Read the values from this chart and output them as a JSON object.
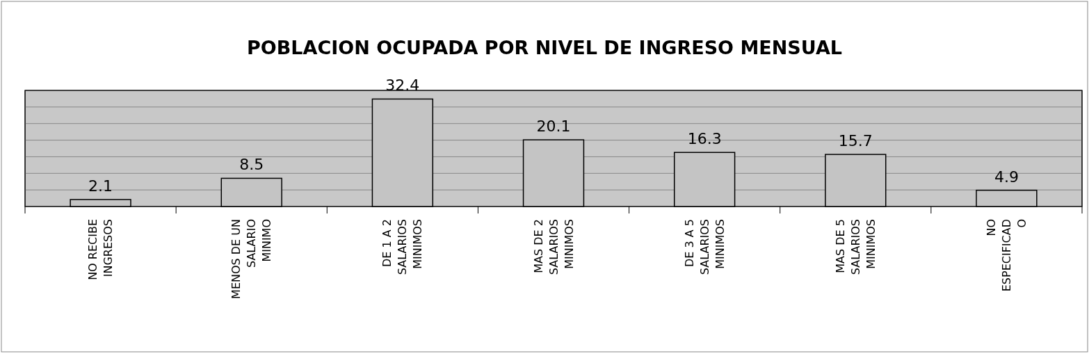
{
  "chart_data": {
    "type": "bar",
    "title": "POBLACION OCUPADA POR NIVEL DE INGRESO MENSUAL",
    "categories": [
      "NO RECIBE\nINGRESOS",
      "MENOS DE UN\nSALARIO\nMINIMO",
      "DE 1 A 2\nSALARIOS\nMINIMOS",
      "MAS DE 2\nSALARIOS\nMINIMOS",
      "DE 3 A 5\nSALARIOS\nMINIMOS",
      "MAS DE 5\nSALARIOS\nMINIMOS",
      "NO\nESPECIFICAD\nO"
    ],
    "values": [
      2.1,
      8.5,
      32.4,
      20.1,
      16.3,
      15.7,
      4.9
    ],
    "color": "#c4c4c4",
    "data_labels": true,
    "grid": "y",
    "tick_labels": "x",
    "ylim": [
      0,
      35
    ],
    "yticks": [
      {
        "value": 0,
        "label": null
      },
      {
        "value": 5,
        "label": null
      },
      {
        "value": 10,
        "label": null
      },
      {
        "value": 15,
        "label": null
      },
      {
        "value": 20,
        "label": null
      },
      {
        "value": 25,
        "label": null
      },
      {
        "value": 30,
        "label": null
      },
      {
        "value": 35,
        "label": null
      }
    ]
  }
}
